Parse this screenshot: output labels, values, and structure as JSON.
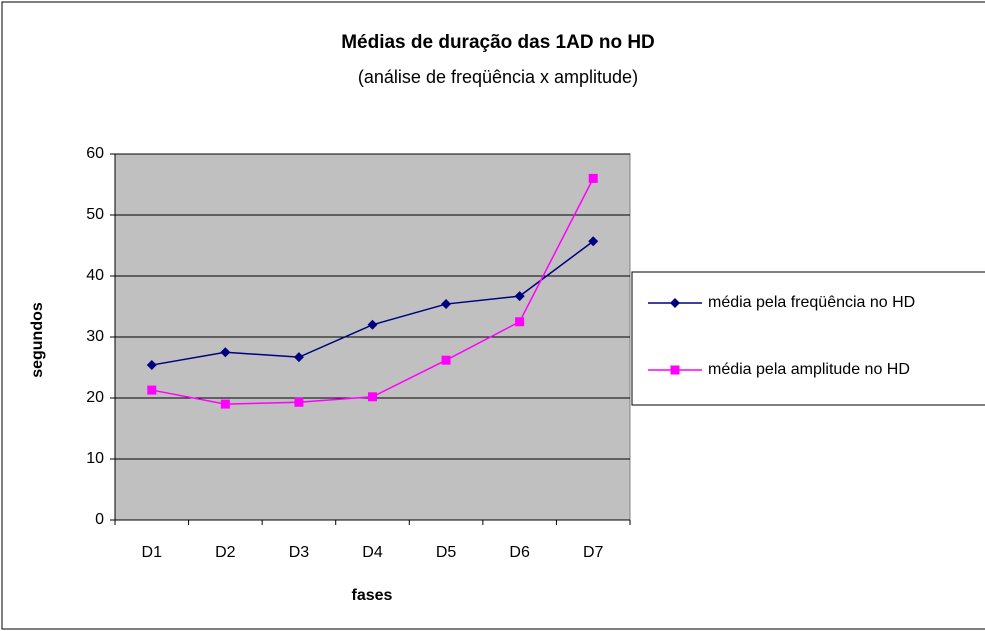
{
  "chart_data": {
    "type": "line",
    "title": "Médias de duração das 1AD no HD",
    "subtitle": "(análise de freqüência x amplitude)",
    "x_label": "fases",
    "y_label": "segundos",
    "categories": [
      "D1",
      "D2",
      "D3",
      "D4",
      "D5",
      "D6",
      "D7"
    ],
    "series": [
      {
        "name": "média pela freqüência no HD",
        "color": "#000080",
        "marker": "diamond",
        "values": [
          25.4,
          27.5,
          26.7,
          32,
          35.4,
          36.7,
          45.7
        ]
      },
      {
        "name": "média pela amplitude no HD",
        "color": "#ff00ff",
        "marker": "square",
        "values": [
          21.3,
          19,
          19.3,
          20.2,
          26.2,
          32.5,
          56
        ]
      }
    ],
    "ylim": [
      0,
      60
    ],
    "yticks": [
      0,
      10,
      20,
      30,
      40,
      50,
      60
    ],
    "grid": true,
    "legend": "right"
  }
}
